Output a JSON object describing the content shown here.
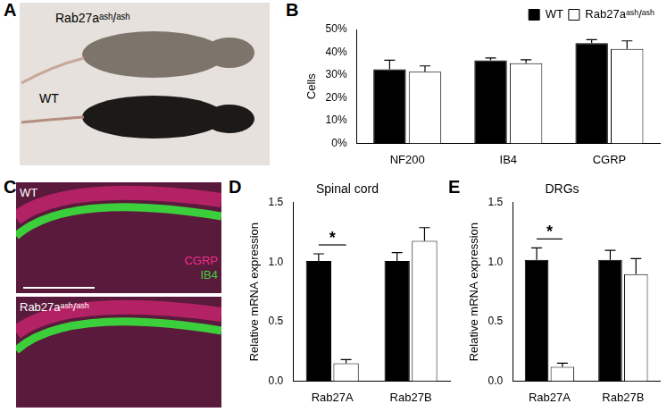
{
  "images": [
    {
      "panel": "A",
      "labels": [
        "Rab27aᵃˢʰ/ᵃˢʰ",
        "WT"
      ]
    },
    {
      "panel": "C",
      "labels": [
        "WT",
        "Rab27aᵃˢʰ/ᵃˢʰ"
      ],
      "stain_labels": [
        {
          "text": "CGRP",
          "color": "#e8308a"
        },
        {
          "text": "IB4",
          "color": "#3ccf3c"
        }
      ]
    }
  ],
  "chart_data": [
    {
      "panel": "B",
      "type": "bar",
      "categories": [
        "NF200",
        "IB4",
        "CGRP"
      ],
      "y_label": "Cells",
      "series": [
        {
          "name": "WT",
          "color": "#000000",
          "values": [
            32.5,
            36.5,
            44
          ],
          "errors": [
            4,
            1,
            1.5
          ]
        },
        {
          "name": "Rab27aᵃˢʰ/ᵃˢʰ",
          "color": "#ffffff",
          "values": [
            31.5,
            35.2,
            41.5
          ],
          "errors": [
            2.5,
            1.5,
            3.5
          ]
        }
      ],
      "ylim": [
        0,
        50
      ],
      "yticks": [
        {
          "value": 0,
          "label": "0%"
        },
        {
          "value": 10,
          "label": "10%"
        },
        {
          "value": 20,
          "label": "20%"
        },
        {
          "value": 30,
          "label": "30%"
        },
        {
          "value": 40,
          "label": "40%"
        },
        {
          "value": 50,
          "label": "50%"
        }
      ],
      "legend": "top-right",
      "grid": false
    },
    {
      "panel": "D",
      "type": "bar",
      "title": "Spinal cord",
      "categories": [
        "Rab27A",
        "Rab27B"
      ],
      "y_label": "Relative mRNA expression",
      "series": [
        {
          "name": "WT",
          "color": "#000000",
          "values": [
            1.01,
            1.01
          ],
          "errors": [
            0.06,
            0.07
          ]
        },
        {
          "name": "Rab27aᵃˢʰ/ᵃˢʰ",
          "color": "#ffffff",
          "values": [
            0.15,
            1.18
          ],
          "errors": [
            0.03,
            0.11
          ]
        }
      ],
      "ylim": [
        0,
        1.5
      ],
      "yticks": [
        {
          "value": 0,
          "label": "0.0"
        },
        0.5,
        {
          "value": 1,
          "label": "1.0"
        },
        1.5
      ],
      "annotations": [
        {
          "text": "*",
          "category": "Rab27A"
        }
      ],
      "grid": false
    },
    {
      "panel": "E",
      "type": "bar",
      "title": "DRGs",
      "categories": [
        "Rab27A",
        "Rab27B"
      ],
      "y_label": "Relative mRNA expression",
      "series": [
        {
          "name": "WT",
          "color": "#000000",
          "values": [
            1.02,
            1.02
          ],
          "errors": [
            0.1,
            0.08
          ]
        },
        {
          "name": "Rab27aᵃˢʰ/ᵃˢʰ",
          "color": "#ffffff",
          "values": [
            0.12,
            0.9
          ],
          "errors": [
            0.03,
            0.13
          ]
        }
      ],
      "ylim": [
        0,
        1.5
      ],
      "yticks": [
        {
          "value": 0,
          "label": "0.0"
        },
        0.5,
        {
          "value": 1,
          "label": "1.0"
        },
        1.5
      ],
      "annotations": [
        {
          "text": "*",
          "category": "Rab27A"
        }
      ],
      "grid": false
    }
  ]
}
